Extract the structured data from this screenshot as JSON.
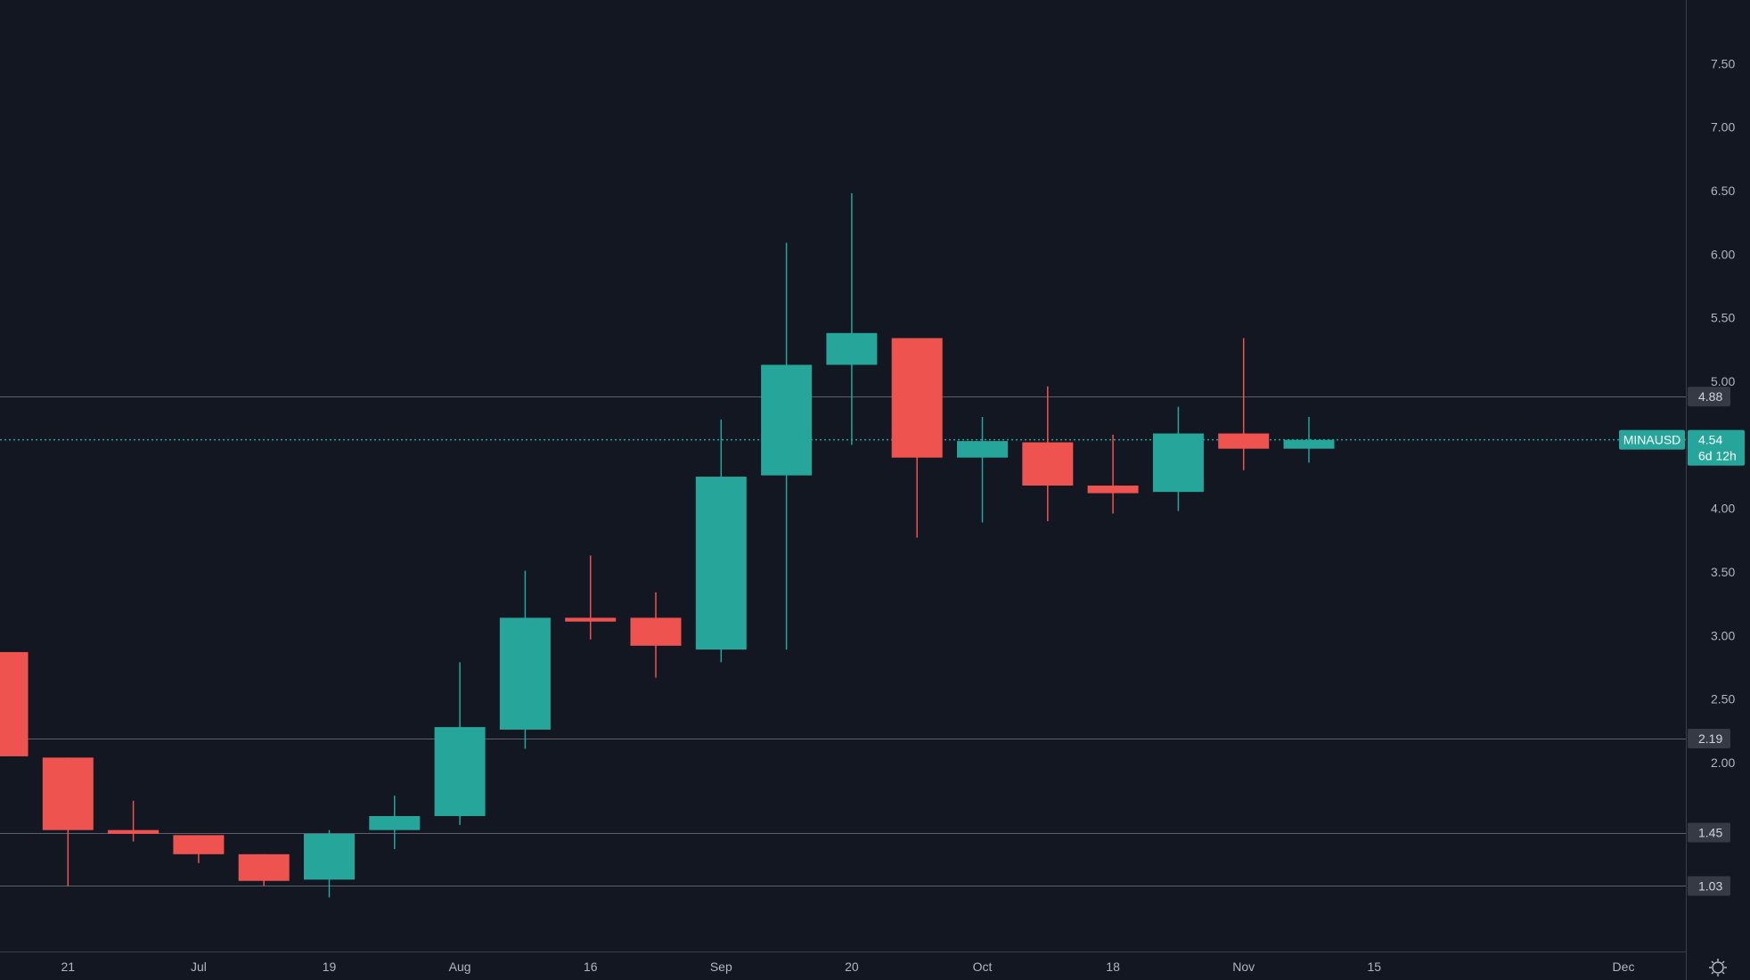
{
  "chart_data": {
    "type": "candlestick",
    "symbol": "MINAUSD",
    "last_price": "4.54",
    "countdown": "6d 12h",
    "x_tick_labels": [
      "21",
      "Jul",
      "19",
      "Aug",
      "16",
      "Sep",
      "20",
      "Oct",
      "18",
      "Nov",
      "15",
      "Dec"
    ],
    "y_tick_labels": [
      "2.00",
      "2.50",
      "3.00",
      "3.50",
      "4.00",
      "5.00",
      "5.50",
      "6.00",
      "6.50",
      "7.00",
      "7.50"
    ],
    "ylim": [
      0.83,
      8.0
    ],
    "horizontal_levels": [
      4.88,
      2.19,
      1.45,
      1.03
    ],
    "level_labels": [
      "4.88",
      "2.19",
      "1.45",
      "1.03"
    ],
    "candles": [
      {
        "o": 2.87,
        "h": 2.87,
        "l": 2.05,
        "c": 2.05
      },
      {
        "o": 2.04,
        "h": 2.04,
        "l": 1.03,
        "c": 1.47
      },
      {
        "o": 1.47,
        "h": 1.7,
        "l": 1.38,
        "c": 1.44
      },
      {
        "o": 1.43,
        "h": 1.43,
        "l": 1.21,
        "c": 1.28
      },
      {
        "o": 1.28,
        "h": 1.28,
        "l": 1.03,
        "c": 1.07
      },
      {
        "o": 1.08,
        "h": 1.47,
        "l": 0.94,
        "c": 1.44
      },
      {
        "o": 1.47,
        "h": 1.74,
        "l": 1.32,
        "c": 1.58
      },
      {
        "o": 1.58,
        "h": 2.79,
        "l": 1.51,
        "c": 2.28
      },
      {
        "o": 2.26,
        "h": 3.51,
        "l": 2.11,
        "c": 3.14
      },
      {
        "o": 3.14,
        "h": 3.63,
        "l": 2.97,
        "c": 3.11
      },
      {
        "o": 3.14,
        "h": 3.34,
        "l": 2.67,
        "c": 2.92
      },
      {
        "o": 2.89,
        "h": 4.7,
        "l": 2.79,
        "c": 4.25
      },
      {
        "o": 4.26,
        "h": 6.09,
        "l": 2.89,
        "c": 5.13
      },
      {
        "o": 5.13,
        "h": 6.48,
        "l": 4.5,
        "c": 5.38
      },
      {
        "o": 5.34,
        "h": 5.34,
        "l": 3.77,
        "c": 4.4
      },
      {
        "o": 4.4,
        "h": 4.72,
        "l": 3.89,
        "c": 4.53
      },
      {
        "o": 4.52,
        "h": 4.96,
        "l": 3.9,
        "c": 4.18
      },
      {
        "o": 4.18,
        "h": 4.58,
        "l": 3.96,
        "c": 4.12
      },
      {
        "o": 4.13,
        "h": 4.8,
        "l": 3.98,
        "c": 4.59
      },
      {
        "o": 4.59,
        "h": 5.34,
        "l": 4.3,
        "c": 4.47
      },
      {
        "o": 4.47,
        "h": 4.72,
        "l": 4.36,
        "c": 4.54
      }
    ]
  }
}
